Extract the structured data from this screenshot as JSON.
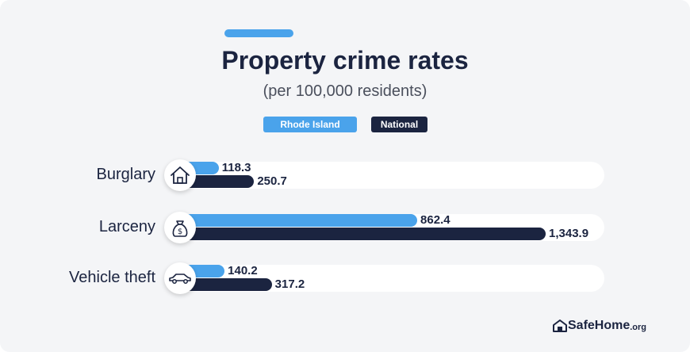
{
  "colors": {
    "rhode_island": "#4aa3eb",
    "national": "#1b2440",
    "accent": "#4aa3eb"
  },
  "chart_data": {
    "type": "bar",
    "orientation": "horizontal",
    "title": "Property crime rates",
    "subtitle": "(per 100,000 residents)",
    "categories": [
      "Burglary",
      "Larceny",
      "Vehicle theft"
    ],
    "category_icons": [
      "house-icon",
      "money-bag-icon",
      "car-icon"
    ],
    "series": [
      {
        "name": "Rhode Island",
        "values": [
          118.3,
          862.4,
          140.2
        ],
        "labels": [
          "118.3",
          "862.4",
          "140.2"
        ]
      },
      {
        "name": "National",
        "values": [
          250.7,
          1343.9,
          317.2
        ],
        "labels": [
          "250.7",
          "1,343.9",
          "317.2"
        ]
      }
    ],
    "xlim": [
      0,
      1343.9
    ],
    "grid": false,
    "legend_position": "top-center"
  },
  "logo": {
    "main": "SafeHome",
    "tld": ".org"
  }
}
